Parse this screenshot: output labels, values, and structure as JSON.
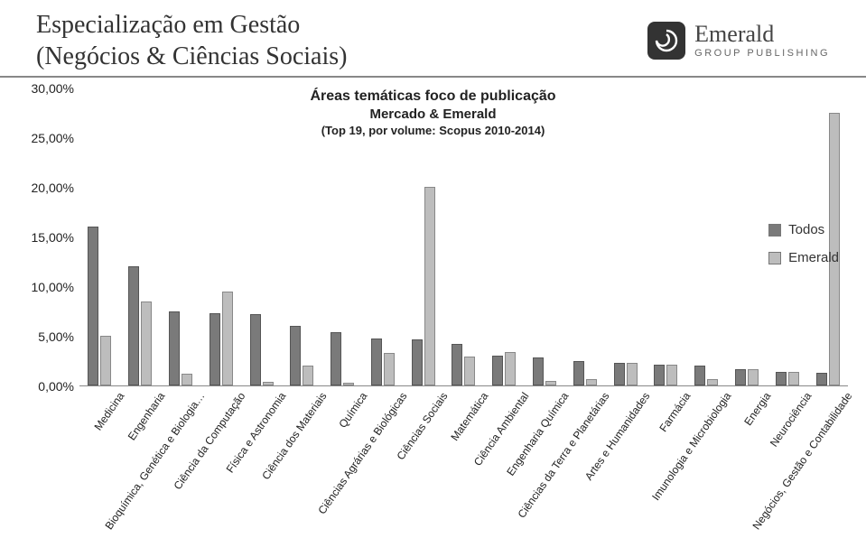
{
  "header": {
    "title_line1": "Especialização em Gestão",
    "title_line2": "(Negócios & Ciências Sociais)",
    "logo_brand": "Emerald",
    "logo_sub": "GROUP PUBLISHING"
  },
  "chart": {
    "type": "bar",
    "title": "Áreas temáticas foco de publicação",
    "subtitle": "Mercado & Emerald",
    "note": "(Top 19, por volume: Scopus 2010-2014)",
    "y": {
      "min": 0,
      "max": 30,
      "ticks": [
        "30,00%",
        "25,00%",
        "20,00%",
        "15,00%",
        "10,00%",
        "5,00%",
        "0,00%"
      ],
      "tick_values": [
        30,
        25,
        20,
        15,
        10,
        5,
        0
      ]
    },
    "series_colors": {
      "todos": "#7a7a7a",
      "emerald": "#bdbdbd"
    },
    "legend": [
      {
        "label": "Todos",
        "swatch": "#7a7a7a"
      },
      {
        "label": "Emerald",
        "swatch": "#bdbdbd"
      }
    ],
    "label_fontsize": 12,
    "title_fontsize": 16,
    "categories": [
      {
        "label": "Medicina",
        "todos": 16.0,
        "emerald": 5.0
      },
      {
        "label": "Engenharia",
        "todos": 12.0,
        "emerald": 8.5
      },
      {
        "label": "Bioquímica, Genética e Biologia…",
        "todos": 7.5,
        "emerald": 1.2
      },
      {
        "label": "Ciência da Computação",
        "todos": 7.3,
        "emerald": 9.5
      },
      {
        "label": "Física e Astronomia",
        "todos": 7.2,
        "emerald": 0.4
      },
      {
        "label": "Ciência dos Materiais",
        "todos": 6.0,
        "emerald": 2.0
      },
      {
        "label": "Química",
        "todos": 5.4,
        "emerald": 0.3
      },
      {
        "label": "Ciências Agrárias e Biológicas",
        "todos": 4.7,
        "emerald": 3.3
      },
      {
        "label": "Ciências Sociais",
        "todos": 4.6,
        "emerald": 20.0
      },
      {
        "label": "Matemática",
        "todos": 4.2,
        "emerald": 2.9
      },
      {
        "label": "Ciência Ambiental",
        "todos": 3.0,
        "emerald": 3.4
      },
      {
        "label": "Engenharia Química",
        "todos": 2.8,
        "emerald": 0.5
      },
      {
        "label": "Ciências da Terra e Planetárias",
        "todos": 2.5,
        "emerald": 0.6
      },
      {
        "label": "Artes e Humanidades",
        "todos": 2.3,
        "emerald": 2.3
      },
      {
        "label": "Farmácia",
        "todos": 2.1,
        "emerald": 2.1
      },
      {
        "label": "Imunologia e Microbiologia",
        "todos": 2.0,
        "emerald": 0.6
      },
      {
        "label": "Energia",
        "todos": 1.6,
        "emerald": 1.6
      },
      {
        "label": "Neurociência",
        "todos": 1.4,
        "emerald": 1.4
      },
      {
        "label": "Negócios, Gestão e Contabilidade",
        "todos": 1.3,
        "emerald": 27.5
      }
    ]
  }
}
